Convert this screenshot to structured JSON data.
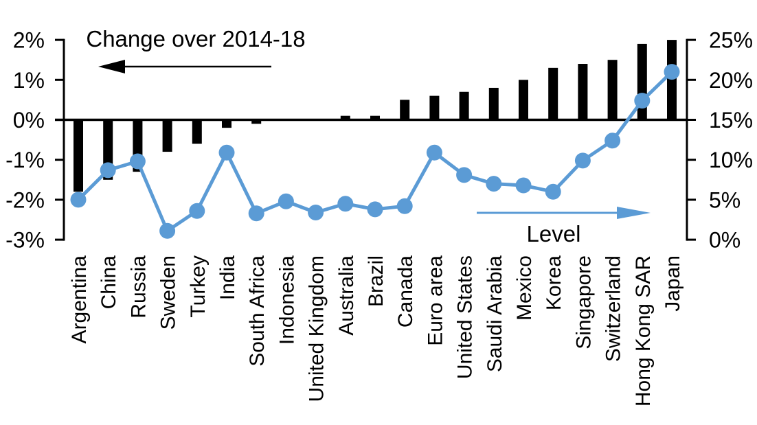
{
  "colors": {
    "bar": "#000000",
    "line": "#5b9bd5",
    "axis": "#000000",
    "background": "#ffffff"
  },
  "chart_data": {
    "type": "bar",
    "subtype": "dual-axis bar + line with markers",
    "title": "",
    "categories": [
      "Argentina",
      "China",
      "Russia",
      "Sweden",
      "Turkey",
      "India",
      "South Africa",
      "Indonesia",
      "United Kingdom",
      "Australia",
      "Brazil",
      "Canada",
      "Euro area",
      "United States",
      "Saudi Arabia",
      "Mexico",
      "Korea",
      "Singapore",
      "Switzerland",
      "Hong Kong SAR",
      "Japan"
    ],
    "series": [
      {
        "name": "Change over 2014-18",
        "type": "bar",
        "axis": "left",
        "color": "#000000",
        "unit": "%",
        "values": [
          -1.8,
          -1.5,
          -1.3,
          -0.8,
          -0.6,
          -0.2,
          -0.1,
          0,
          0,
          0.1,
          0.1,
          0.5,
          0.6,
          0.7,
          0.8,
          1.0,
          1.3,
          1.4,
          1.5,
          1.9,
          2.0
        ]
      },
      {
        "name": "Level",
        "type": "line",
        "axis": "right",
        "color": "#5b9bd5",
        "unit": "%",
        "values": [
          5.0,
          8.7,
          9.8,
          1.1,
          3.6,
          10.9,
          3.3,
          4.8,
          3.4,
          4.5,
          3.8,
          4.2,
          10.9,
          8.1,
          7.0,
          6.8,
          6.0,
          9.9,
          12.4,
          17.4,
          21.0
        ]
      }
    ],
    "left_axis": {
      "ticks": [
        "2%",
        "1%",
        "0%",
        "-1%",
        "-2%",
        "-3%"
      ],
      "tick_values": [
        2,
        1,
        0,
        -1,
        -2,
        -3
      ],
      "min": -3,
      "max": 2
    },
    "right_axis": {
      "ticks": [
        "25%",
        "20%",
        "15%",
        "10%",
        "5%",
        "0%"
      ],
      "tick_values": [
        25,
        20,
        15,
        10,
        5,
        0
      ],
      "min": 0,
      "max": 25
    },
    "annotations": [
      {
        "text": "Change over 2014-18",
        "arrow": "left",
        "arrow_color": "#000000"
      },
      {
        "text": "Level",
        "arrow": "right",
        "arrow_color": "#5b9bd5"
      }
    ],
    "grid": false,
    "legend": "annotations with directional arrows instead of legend box"
  }
}
